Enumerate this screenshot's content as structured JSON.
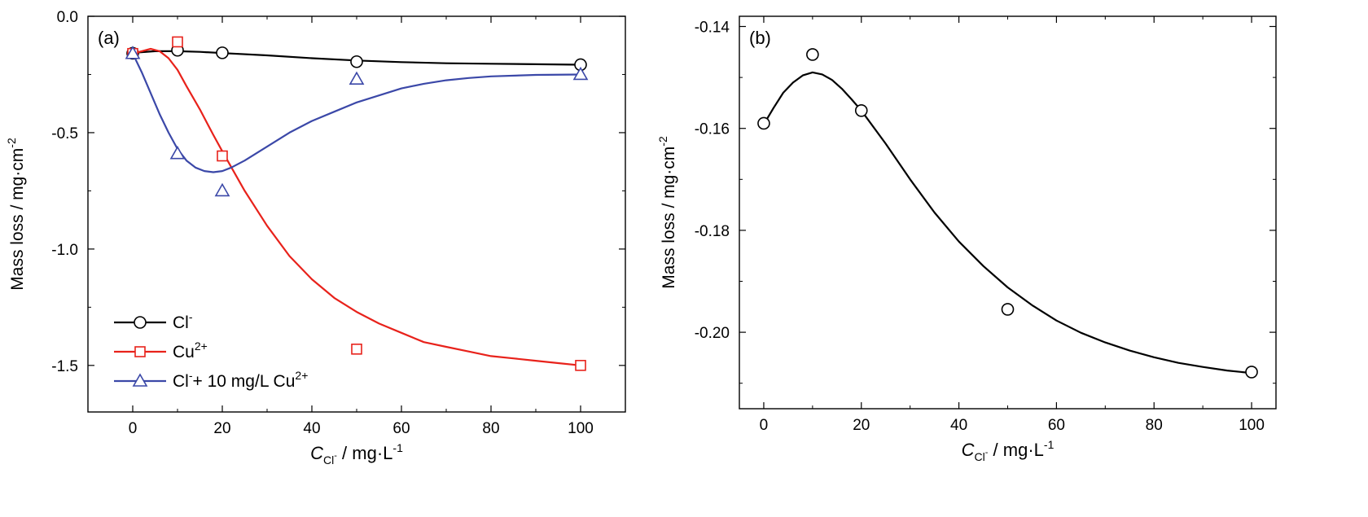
{
  "chart_data": [
    {
      "type": "scatter",
      "panel_label": "(a)",
      "ylabel": "Mass loss / mg·cm",
      "ylabel_sup": "-2",
      "xlabel_main": "C",
      "xlabel_sub": "Cl",
      "xlabel_subsup": "-",
      "xlabel_unit": " / mg·L",
      "xlabel_unitsup": "-1",
      "xlim": [
        -10,
        110
      ],
      "ylim": [
        -1.7,
        0.0
      ],
      "xticks": [
        0,
        20,
        40,
        60,
        80,
        100
      ],
      "yticks": [
        0.0,
        -0.5,
        -1.0,
        -1.5
      ],
      "ytick_labels": [
        "0.0",
        "-0.5",
        "-1.0",
        "-1.5"
      ],
      "grid": false,
      "legend_position": "bottom-left",
      "series": [
        {
          "name": "Cl",
          "name_sup": "-",
          "name_tail": "",
          "name_tail_sup": "",
          "marker": "circle",
          "color": "#000000",
          "x": [
            0,
            10,
            20,
            50,
            100
          ],
          "y": [
            -0.159,
            -0.146,
            -0.157,
            -0.195,
            -0.208
          ],
          "fit": [
            [
              0,
              -0.157
            ],
            [
              5,
              -0.15
            ],
            [
              10,
              -0.15
            ],
            [
              15,
              -0.153
            ],
            [
              20,
              -0.158
            ],
            [
              30,
              -0.168
            ],
            [
              40,
              -0.18
            ],
            [
              50,
              -0.19
            ],
            [
              60,
              -0.197
            ],
            [
              70,
              -0.202
            ],
            [
              80,
              -0.204
            ],
            [
              90,
              -0.206
            ],
            [
              100,
              -0.208
            ]
          ]
        },
        {
          "name": "Cu",
          "name_sup": "2+",
          "name_tail": "",
          "name_tail_sup": "",
          "marker": "square",
          "color": "#e8221b",
          "x": [
            0,
            10,
            20,
            50,
            100
          ],
          "y": [
            -0.16,
            -0.11,
            -0.6,
            -1.43,
            -1.5
          ],
          "fit": [
            [
              0,
              -0.16
            ],
            [
              2,
              -0.15
            ],
            [
              4,
              -0.14
            ],
            [
              6,
              -0.15
            ],
            [
              8,
              -0.18
            ],
            [
              10,
              -0.23
            ],
            [
              12,
              -0.3
            ],
            [
              15,
              -0.4
            ],
            [
              18,
              -0.51
            ],
            [
              20,
              -0.58
            ],
            [
              25,
              -0.75
            ],
            [
              30,
              -0.9
            ],
            [
              35,
              -1.03
            ],
            [
              40,
              -1.13
            ],
            [
              45,
              -1.21
            ],
            [
              50,
              -1.27
            ],
            [
              55,
              -1.32
            ],
            [
              60,
              -1.36
            ],
            [
              65,
              -1.4
            ],
            [
              70,
              -1.42
            ],
            [
              75,
              -1.44
            ],
            [
              80,
              -1.46
            ],
            [
              85,
              -1.47
            ],
            [
              90,
              -1.48
            ],
            [
              95,
              -1.49
            ],
            [
              100,
              -1.5
            ]
          ]
        },
        {
          "name": "Cl",
          "name_sup": "-",
          "name_tail": "+ 10 mg/L Cu",
          "name_tail_sup": "2+",
          "marker": "triangle",
          "color": "#3b48a8",
          "x": [
            0,
            10,
            20,
            50,
            100
          ],
          "y": [
            -0.16,
            -0.59,
            -0.75,
            -0.27,
            -0.25
          ],
          "fit": [
            [
              0,
              -0.16
            ],
            [
              2,
              -0.24
            ],
            [
              4,
              -0.33
            ],
            [
              6,
              -0.42
            ],
            [
              8,
              -0.5
            ],
            [
              10,
              -0.57
            ],
            [
              12,
              -0.62
            ],
            [
              14,
              -0.65
            ],
            [
              16,
              -0.665
            ],
            [
              18,
              -0.67
            ],
            [
              20,
              -0.665
            ],
            [
              22,
              -0.65
            ],
            [
              25,
              -0.62
            ],
            [
              30,
              -0.56
            ],
            [
              35,
              -0.5
            ],
            [
              40,
              -0.45
            ],
            [
              45,
              -0.41
            ],
            [
              50,
              -0.37
            ],
            [
              55,
              -0.34
            ],
            [
              60,
              -0.31
            ],
            [
              65,
              -0.29
            ],
            [
              70,
              -0.275
            ],
            [
              75,
              -0.265
            ],
            [
              80,
              -0.258
            ],
            [
              90,
              -0.252
            ],
            [
              100,
              -0.25
            ]
          ]
        }
      ]
    },
    {
      "type": "scatter",
      "panel_label": "(b)",
      "ylabel": "Mass loss / mg·cm",
      "ylabel_sup": "-2",
      "xlabel_main": "C",
      "xlabel_sub": "Cl",
      "xlabel_subsup": "-",
      "xlabel_unit": " / mg·L",
      "xlabel_unitsup": "-1",
      "xlim": [
        -5,
        105
      ],
      "ylim": [
        -0.215,
        -0.138
      ],
      "xticks": [
        0,
        20,
        40,
        60,
        80,
        100
      ],
      "yticks": [
        -0.14,
        -0.16,
        -0.18,
        -0.2
      ],
      "ytick_labels": [
        "-0.14",
        "-0.16",
        "-0.18",
        "-0.20"
      ],
      "grid": false,
      "series": [
        {
          "name": "",
          "marker": "circle",
          "color": "#000000",
          "x": [
            0,
            10,
            20,
            50,
            100
          ],
          "y": [
            -0.159,
            -0.1455,
            -0.1565,
            -0.1955,
            -0.2078
          ],
          "fit": [
            [
              0,
              -0.1592
            ],
            [
              2,
              -0.156
            ],
            [
              4,
              -0.153
            ],
            [
              6,
              -0.151
            ],
            [
              8,
              -0.1496
            ],
            [
              10,
              -0.149
            ],
            [
              12,
              -0.1494
            ],
            [
              14,
              -0.1505
            ],
            [
              16,
              -0.1522
            ],
            [
              18,
              -0.1543
            ],
            [
              20,
              -0.1565
            ],
            [
              25,
              -0.163
            ],
            [
              30,
              -0.17
            ],
            [
              35,
              -0.1765
            ],
            [
              40,
              -0.1822
            ],
            [
              45,
              -0.187
            ],
            [
              50,
              -0.1912
            ],
            [
              55,
              -0.1947
            ],
            [
              60,
              -0.1977
            ],
            [
              65,
              -0.2001
            ],
            [
              70,
              -0.202
            ],
            [
              75,
              -0.2036
            ],
            [
              80,
              -0.2049
            ],
            [
              85,
              -0.206
            ],
            [
              90,
              -0.2068
            ],
            [
              95,
              -0.2075
            ],
            [
              100,
              -0.208
            ]
          ]
        }
      ]
    }
  ]
}
